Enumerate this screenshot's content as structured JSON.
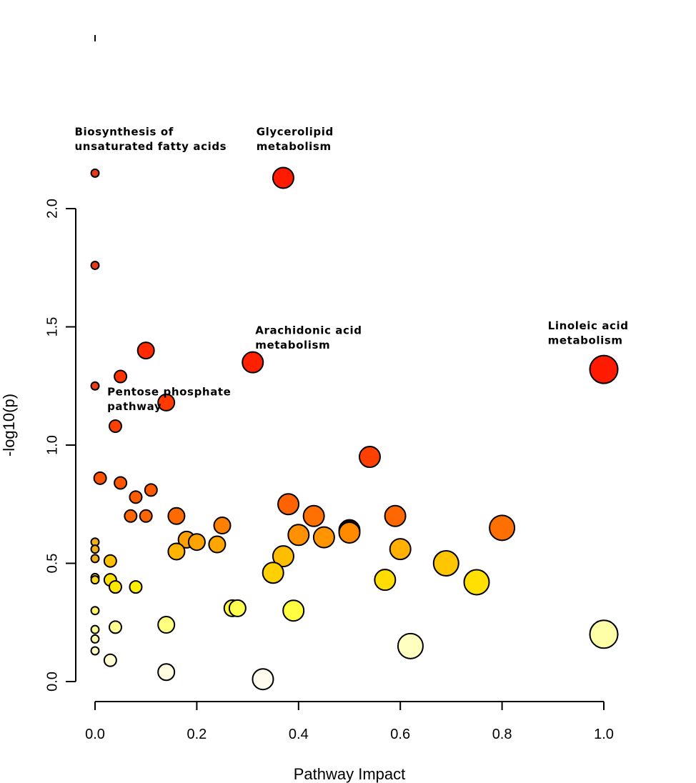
{
  "chart_data": {
    "type": "scatter",
    "title": "",
    "xlabel": "Pathway Impact",
    "ylabel": "-log10(p)",
    "xlim": [
      0.0,
      1.0
    ],
    "ylim": [
      0.0,
      2.0
    ],
    "x_ticks": [
      "0.0",
      "0.2",
      "0.4",
      "0.6",
      "0.8",
      "1.0"
    ],
    "y_ticks": [
      "0.0",
      "0.5",
      "1.0",
      "1.5",
      "2.0"
    ],
    "colors": {
      "high": "#ff1a00",
      "mid_high": "#ff6a00",
      "mid": "#ffa500",
      "mid_low": "#ffdd00",
      "low": "#ffff60",
      "lowest": "#fffbe0"
    },
    "points": [
      {
        "x": 0.0,
        "y": 2.15,
        "size": 1,
        "color": "#e83a16"
      },
      {
        "x": 0.0,
        "y": 1.76,
        "size": 1,
        "color": "#e83a16"
      },
      {
        "x": 0.0,
        "y": 1.25,
        "size": 1,
        "color": "#ec3f16"
      },
      {
        "x": 0.0,
        "y": 0.59,
        "size": 1,
        "color": "#f2ad1a"
      },
      {
        "x": 0.0,
        "y": 0.56,
        "size": 1,
        "color": "#f2ad1a"
      },
      {
        "x": 0.0,
        "y": 0.52,
        "size": 1,
        "color": "#f2ad1a"
      },
      {
        "x": 0.0,
        "y": 0.44,
        "size": 1,
        "color": "#f4c71c"
      },
      {
        "x": 0.0,
        "y": 0.43,
        "size": 1,
        "color": "#f8dc1c"
      },
      {
        "x": 0.0,
        "y": 0.3,
        "size": 1,
        "color": "#fff46a"
      },
      {
        "x": 0.0,
        "y": 0.22,
        "size": 1,
        "color": "#fffe90"
      },
      {
        "x": 0.0,
        "y": 0.18,
        "size": 1,
        "color": "#fffea8"
      },
      {
        "x": 0.0,
        "y": 0.13,
        "size": 1,
        "color": "#fffcc0"
      },
      {
        "x": 0.37,
        "y": 2.13,
        "size": 4,
        "color": "#ff1a00"
      },
      {
        "x": 0.1,
        "y": 1.4,
        "size": 3,
        "color": "#ff2a00"
      },
      {
        "x": 0.05,
        "y": 1.29,
        "size": 2,
        "color": "#ff3300"
      },
      {
        "x": 0.14,
        "y": 1.18,
        "size": 3,
        "color": "#ff3900"
      },
      {
        "x": 0.04,
        "y": 1.08,
        "size": 2,
        "color": "#ff4000"
      },
      {
        "x": 0.31,
        "y": 1.35,
        "size": 4,
        "color": "#ff2000"
      },
      {
        "x": 1.0,
        "y": 1.32,
        "size": 6,
        "color": "#ff1a00"
      },
      {
        "x": 0.54,
        "y": 0.95,
        "size": 4,
        "color": "#ff4000"
      },
      {
        "x": 0.01,
        "y": 0.86,
        "size": 2,
        "color": "#ff5200"
      },
      {
        "x": 0.05,
        "y": 0.84,
        "size": 2,
        "color": "#ff5500"
      },
      {
        "x": 0.11,
        "y": 0.81,
        "size": 2,
        "color": "#ff5800"
      },
      {
        "x": 0.08,
        "y": 0.78,
        "size": 2,
        "color": "#ff5c00"
      },
      {
        "x": 0.07,
        "y": 0.7,
        "size": 2,
        "color": "#ff6500"
      },
      {
        "x": 0.1,
        "y": 0.7,
        "size": 2,
        "color": "#ff6500"
      },
      {
        "x": 0.16,
        "y": 0.7,
        "size": 3,
        "color": "#ff6a00"
      },
      {
        "x": 0.38,
        "y": 0.75,
        "size": 4,
        "color": "#ff6200"
      },
      {
        "x": 0.43,
        "y": 0.7,
        "size": 4,
        "color": "#ff7000"
      },
      {
        "x": 0.59,
        "y": 0.7,
        "size": 4,
        "color": "#ff6800"
      },
      {
        "x": 0.8,
        "y": 0.65,
        "size": 5,
        "color": "#ff7000"
      },
      {
        "x": 0.25,
        "y": 0.66,
        "size": 3,
        "color": "#ff8000"
      },
      {
        "x": 0.5,
        "y": 0.64,
        "size": 4,
        "color": "#1a0a00"
      },
      {
        "x": 0.5,
        "y": 0.63,
        "size": 4,
        "color": "#ff8a00"
      },
      {
        "x": 0.4,
        "y": 0.62,
        "size": 4,
        "color": "#ff9000"
      },
      {
        "x": 0.45,
        "y": 0.61,
        "size": 4,
        "color": "#ff9500"
      },
      {
        "x": 0.18,
        "y": 0.6,
        "size": 3,
        "color": "#ffa000"
      },
      {
        "x": 0.2,
        "y": 0.59,
        "size": 3,
        "color": "#ffa300"
      },
      {
        "x": 0.24,
        "y": 0.58,
        "size": 3,
        "color": "#ffa600"
      },
      {
        "x": 0.6,
        "y": 0.56,
        "size": 4,
        "color": "#ffb000"
      },
      {
        "x": 0.16,
        "y": 0.55,
        "size": 3,
        "color": "#ffb500"
      },
      {
        "x": 0.37,
        "y": 0.53,
        "size": 4,
        "color": "#ffbd00"
      },
      {
        "x": 0.03,
        "y": 0.51,
        "size": 2,
        "color": "#ffc000"
      },
      {
        "x": 0.69,
        "y": 0.5,
        "size": 5,
        "color": "#ffc600"
      },
      {
        "x": 0.35,
        "y": 0.46,
        "size": 4,
        "color": "#ffd000"
      },
      {
        "x": 0.57,
        "y": 0.43,
        "size": 4,
        "color": "#ffdd00"
      },
      {
        "x": 0.03,
        "y": 0.43,
        "size": 2,
        "color": "#ffe000"
      },
      {
        "x": 0.75,
        "y": 0.42,
        "size": 5,
        "color": "#ffe000"
      },
      {
        "x": 0.04,
        "y": 0.4,
        "size": 2,
        "color": "#ffe800"
      },
      {
        "x": 0.08,
        "y": 0.4,
        "size": 2,
        "color": "#fff000"
      },
      {
        "x": 0.27,
        "y": 0.31,
        "size": 3,
        "color": "#ffff3c"
      },
      {
        "x": 0.28,
        "y": 0.31,
        "size": 3,
        "color": "#ffff50"
      },
      {
        "x": 0.39,
        "y": 0.3,
        "size": 4,
        "color": "#ffff40"
      },
      {
        "x": 0.04,
        "y": 0.23,
        "size": 2,
        "color": "#ffff90"
      },
      {
        "x": 0.14,
        "y": 0.24,
        "size": 3,
        "color": "#ffff80"
      },
      {
        "x": 1.0,
        "y": 0.2,
        "size": 6,
        "color": "#ffffa8"
      },
      {
        "x": 0.62,
        "y": 0.15,
        "size": 5,
        "color": "#ffffc0"
      },
      {
        "x": 0.03,
        "y": 0.09,
        "size": 2,
        "color": "#fffcd0"
      },
      {
        "x": 0.14,
        "y": 0.04,
        "size": 3,
        "color": "#fffce0"
      },
      {
        "x": 0.33,
        "y": 0.01,
        "size": 4,
        "color": "#fffcee"
      }
    ],
    "annotations": [
      {
        "lines": [
          "Biosynthesis of",
          "unsaturated fatty acids"
        ],
        "x": -0.04,
        "y": 2.31
      },
      {
        "lines": [
          "Glycerolipid",
          "metabolism"
        ],
        "x": 0.317,
        "y": 2.31
      },
      {
        "lines": [
          "Arachidonic acid",
          "metabolism"
        ],
        "x": 0.315,
        "y": 1.47
      },
      {
        "lines": [
          "Pentose phosphate",
          "pathway"
        ],
        "x": 0.024,
        "y": 1.21
      },
      {
        "lines": [
          "Linoleic acid",
          "metabolism"
        ],
        "x": 0.89,
        "y": 1.49
      }
    ]
  }
}
